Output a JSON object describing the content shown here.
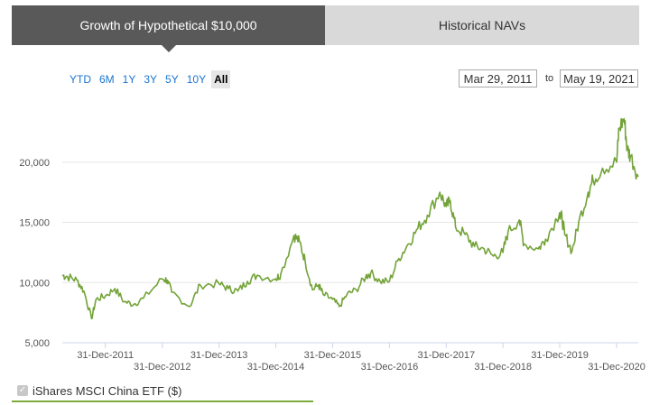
{
  "tabs": [
    {
      "label": "Growth of Hypothetical $10,000",
      "active": true
    },
    {
      "label": "Historical NAVs",
      "active": false
    }
  ],
  "range_buttons": [
    "YTD",
    "6M",
    "1Y",
    "3Y",
    "5Y",
    "10Y",
    "All"
  ],
  "selected_range": "All",
  "date_range": {
    "from": "Mar 29, 2011",
    "to_label": "to",
    "to": "May 19, 2021"
  },
  "legend": {
    "label": "iShares MSCI China ETF ($)",
    "checked": true
  },
  "colors": {
    "series": "#73a338",
    "tab_active": "#595959",
    "tab_inactive": "#d9d9d9",
    "link": "#1a75cf"
  },
  "chart_data": {
    "type": "line",
    "title": "",
    "xlabel": "",
    "ylabel": "",
    "ylim": [
      5000,
      25000
    ],
    "y_ticks": [
      5000,
      10000,
      15000,
      20000
    ],
    "y_tick_labels": [
      "5,000",
      "10,000",
      "15,000",
      "20,000"
    ],
    "x_ticks": [
      "2011-12-31",
      "2012-12-31",
      "2013-12-31",
      "2014-12-31",
      "2015-12-31",
      "2016-12-31",
      "2017-12-31",
      "2018-12-31",
      "2019-12-31",
      "2020-12-31"
    ],
    "x_tick_labels": [
      "31-Dec-2011",
      "31-Dec-2012",
      "31-Dec-2013",
      "31-Dec-2014",
      "31-Dec-2015",
      "31-Dec-2016",
      "31-Dec-2017",
      "31-Dec-2018",
      "31-Dec-2019",
      "31-Dec-2020"
    ],
    "xlim": [
      "2011-03-29",
      "2021-05-19"
    ],
    "grid": true,
    "legend_position": "bottom-left",
    "series": [
      {
        "name": "iShares MSCI China ETF ($)",
        "x": [
          "2011-03-29",
          "2011-05-01",
          "2011-07-01",
          "2011-08-15",
          "2011-10-03",
          "2011-11-01",
          "2012-01-01",
          "2012-03-01",
          "2012-05-01",
          "2012-07-01",
          "2012-09-01",
          "2012-12-31",
          "2013-02-01",
          "2013-03-01",
          "2013-06-24",
          "2013-09-01",
          "2013-12-31",
          "2014-03-01",
          "2014-05-01",
          "2014-07-01",
          "2014-09-01",
          "2014-12-31",
          "2015-02-01",
          "2015-04-27",
          "2015-06-01",
          "2015-07-08",
          "2015-08-24",
          "2015-10-01",
          "2015-11-01",
          "2015-12-31",
          "2016-02-12",
          "2016-04-01",
          "2016-06-01",
          "2016-08-01",
          "2016-09-01",
          "2016-11-01",
          "2016-12-31",
          "2017-03-01",
          "2017-05-01",
          "2017-07-01",
          "2017-09-01",
          "2017-11-20",
          "2017-12-31",
          "2018-01-26",
          "2018-03-01",
          "2018-05-01",
          "2018-07-01",
          "2018-09-01",
          "2018-10-30",
          "2018-12-31",
          "2019-02-01",
          "2019-04-15",
          "2019-05-15",
          "2019-08-15",
          "2019-10-01",
          "2019-12-31",
          "2020-01-15",
          "2020-02-01",
          "2020-03-19",
          "2020-05-01",
          "2020-07-01",
          "2020-08-01",
          "2020-10-01",
          "2020-12-31",
          "2021-01-15",
          "2021-02-17",
          "2021-03-10",
          "2021-04-01",
          "2021-05-19"
        ],
        "values": [
          10600,
          10500,
          10200,
          9300,
          7000,
          8600,
          8900,
          9500,
          8400,
          8200,
          8700,
          10300,
          10200,
          9200,
          8000,
          9800,
          9900,
          9500,
          9300,
          10100,
          10600,
          10300,
          10700,
          13900,
          13400,
          11800,
          9400,
          9800,
          9000,
          8600,
          8000,
          9000,
          9400,
          10500,
          10800,
          10100,
          10100,
          12000,
          13200,
          14500,
          15600,
          17500,
          16300,
          16800,
          14600,
          14000,
          13000,
          12800,
          12200,
          12500,
          14200,
          15200,
          13200,
          12800,
          13600,
          15800,
          15300,
          14000,
          12600,
          15000,
          17500,
          18500,
          19500,
          20000,
          22800,
          23600,
          21000,
          20500,
          18800
        ]
      }
    ]
  }
}
